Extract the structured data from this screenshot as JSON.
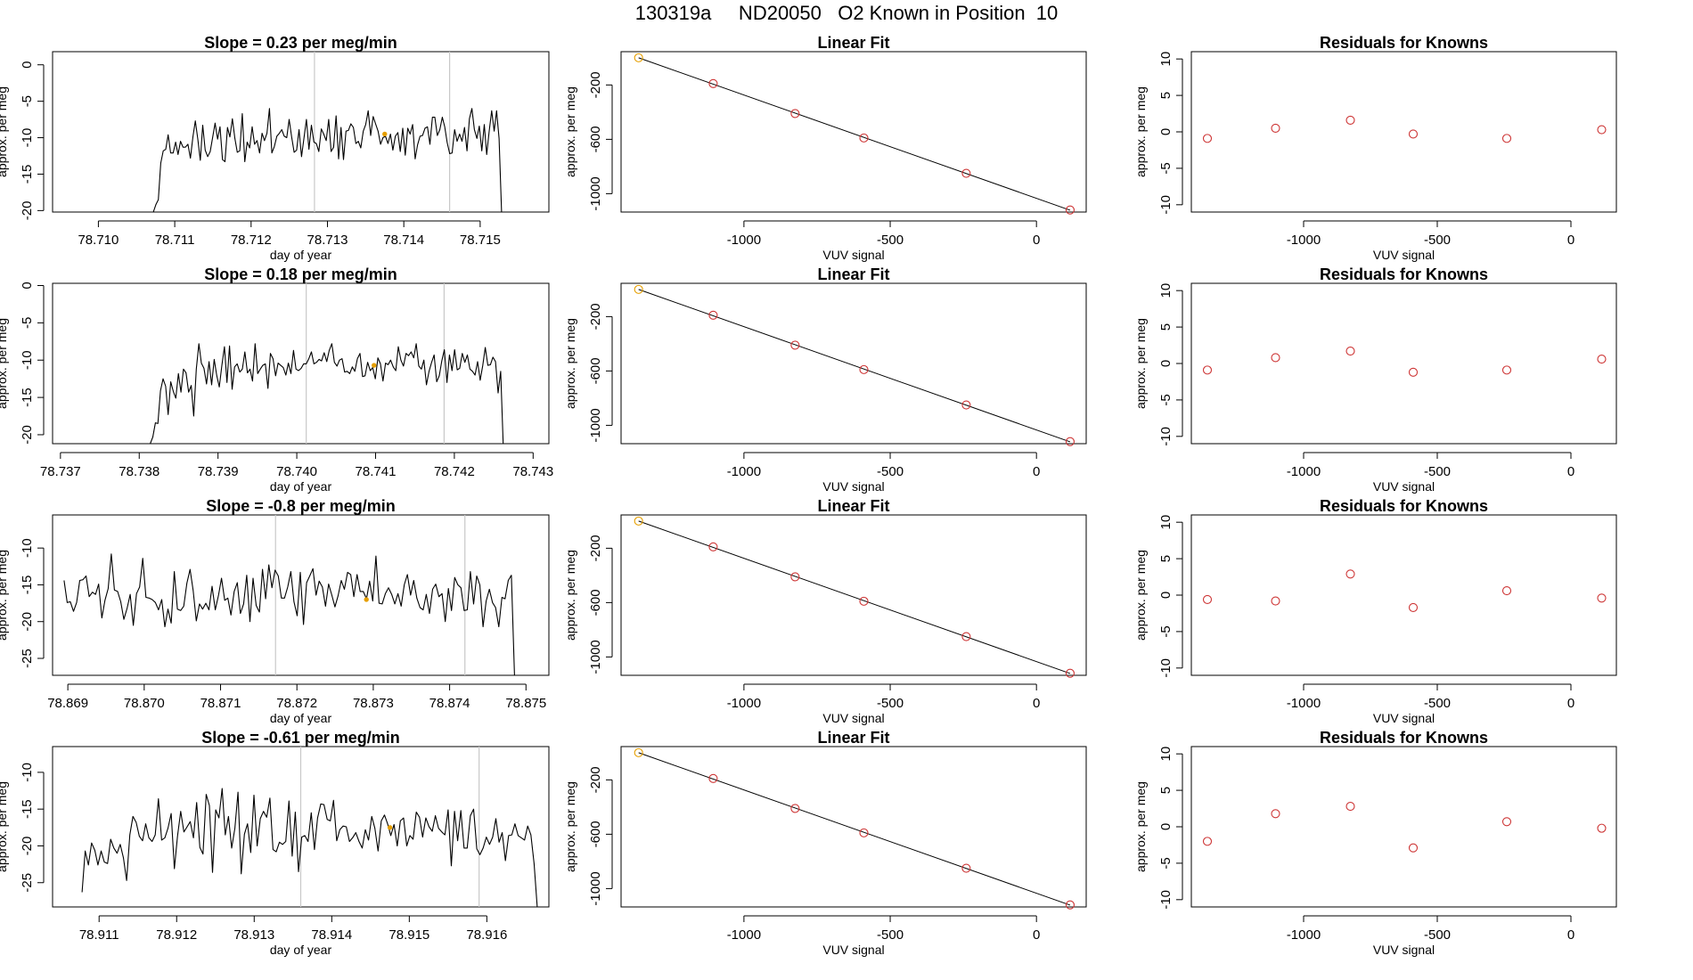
{
  "figure": {
    "title": "130319a     ND20050   O2 Known in Position  10"
  },
  "colors": {
    "trace": "#000000",
    "fit_line": "#000000",
    "guide_line": "#c8c8c8",
    "highlight": "#e69f00",
    "residual_point": "#cd3333",
    "axis": "#000000"
  },
  "chart_data": [
    {
      "type": "line",
      "row": 0,
      "panel": "trace",
      "title": "Slope =  0.23  per meg/min",
      "xlabel": "day of year",
      "ylabel": "approx. per meg",
      "xlim": [
        78.7094,
        78.7159
      ],
      "ylim": [
        -20.2,
        1.8
      ],
      "xticks": [
        78.71,
        78.711,
        78.712,
        78.713,
        78.714,
        78.715
      ],
      "xtick_labels": [
        "78.710",
        "78.711",
        "78.712",
        "78.713",
        "78.714",
        "78.715"
      ],
      "yticks": [
        0,
        -5,
        -10,
        -15,
        -20
      ],
      "ytick_labels": [
        "0",
        "-5",
        "-10",
        "-15",
        "-20"
      ],
      "guide_lines_x": [
        78.71283,
        78.7146
      ],
      "highlight_point": {
        "x": 78.71375,
        "y": -9.5
      },
      "segment": {
        "x_start": 78.71072,
        "x_end": 78.71528,
        "mean": -10.0,
        "amplitude": 2.8
      },
      "trace_y": [
        -20.2,
        -19.2,
        -18.5,
        -13.5,
        -11.8,
        -11.6,
        -9.6,
        -12.1,
        -12.1,
        -10.6,
        -12.3,
        -10.5,
        -11.3,
        -11.3,
        -10.9,
        -12.8,
        -9.9,
        -7.7,
        -10.2,
        -13.1,
        -8.3,
        -11.7,
        -12.6,
        -11.9,
        -10.0,
        -8.0,
        -10.2,
        -8.5,
        -13.0,
        -13.3,
        -8.6,
        -9.9,
        -7.4,
        -10.1,
        -12.0,
        -11.8,
        -6.7,
        -13.3,
        -10.6,
        -11.4,
        -8.5,
        -10.9,
        -10.4,
        -12.1,
        -9.4,
        -10.4,
        -9.4,
        -6.0,
        -12.1,
        -11.2,
        -9.8,
        -9.4,
        -8.9,
        -9.8,
        -10.0,
        -7.5,
        -9.9,
        -12.0,
        -11.7,
        -8.9,
        -12.6,
        -10.0,
        -7.5,
        -11.6,
        -8.3,
        -10.6,
        -10.8,
        -11.9,
        -8.8,
        -9.5,
        -10.4,
        -7.5,
        -11.9,
        -11.3,
        -7.0,
        -12.9,
        -8.6,
        -13.0,
        -9.1,
        -9.0,
        -8.1,
        -8.6,
        -10.8,
        -10.5,
        -11.4,
        -9.1,
        -8.2,
        -6.3,
        -9.7,
        -7.1,
        -8.1,
        -9.1,
        -10.9,
        -10.0,
        -9.8,
        -10.8,
        -9.5,
        -11.7,
        -9.8,
        -9.3,
        -11.9,
        -8.7,
        -12.4,
        -8.7,
        -9.5,
        -8.2,
        -12.9,
        -11.0,
        -9.8,
        -9.7,
        -8.7,
        -8.5,
        -10.9,
        -7.2,
        -7.2,
        -9.7,
        -8.9,
        -7.2,
        -8.5,
        -10.7,
        -12.2,
        -12.1,
        -8.9,
        -10.5,
        -9.5,
        -10.5,
        -8.6,
        -11.8,
        -7.4,
        -6.0,
        -8.9,
        -10.1,
        -8.4,
        -11.8,
        -8.2,
        -12.3,
        -9.1,
        -6.3,
        -9.1,
        -6.3,
        -10.1,
        -20.2
      ],
      "mean_y": -10.0
    },
    {
      "type": "scatter",
      "row": 0,
      "panel": "fit",
      "title": "Linear Fit",
      "xlabel": "VUV signal",
      "ylabel": "approx. per meg",
      "xlim": [
        -1420,
        170
      ],
      "ylim": [
        -1135,
        45
      ],
      "xticks": [
        -1000,
        -500,
        0
      ],
      "xtick_labels": [
        "-1000",
        "-500",
        "0"
      ],
      "yticks": [
        -200,
        -600,
        -1000
      ],
      "ytick_labels": [
        "-200",
        "-600",
        "-1000"
      ],
      "x": [
        -1360,
        -1105,
        -825,
        -590,
        -240,
        115
      ],
      "y": [
        0,
        -190,
        -410,
        -590,
        -850,
        -1120
      ]
    },
    {
      "type": "scatter",
      "row": 0,
      "panel": "residuals",
      "title": "Residuals for Knowns",
      "xlabel": "VUV signal",
      "ylabel": "approx. per meg",
      "xlim": [
        -1420,
        170
      ],
      "ylim": [
        -11,
        11
      ],
      "xticks": [
        -1000,
        -500,
        0
      ],
      "xtick_labels": [
        "-1000",
        "-500",
        "0"
      ],
      "yticks": [
        10,
        5,
        0,
        -5,
        -10
      ],
      "ytick_labels": [
        "10",
        "5",
        "0",
        "-5",
        "-10"
      ],
      "x": [
        -1360,
        -1105,
        -825,
        -590,
        -240,
        115
      ],
      "y": [
        -0.9,
        0.5,
        1.6,
        -0.3,
        -0.9,
        0.3
      ]
    },
    {
      "type": "line",
      "row": 1,
      "panel": "trace",
      "title": "Slope =  0.18  per meg/min",
      "xlabel": "day of year",
      "ylabel": "approx. per meg",
      "xlim": [
        78.7369,
        78.7432
      ],
      "ylim": [
        -21.2,
        0.3
      ],
      "xticks": [
        78.737,
        78.738,
        78.739,
        78.74,
        78.741,
        78.742,
        78.743
      ],
      "xtick_labels": [
        "78.737",
        "78.738",
        "78.739",
        "78.740",
        "78.741",
        "78.742",
        "78.743"
      ],
      "yticks": [
        0,
        -5,
        -10,
        -15,
        -20
      ],
      "ytick_labels": [
        "0",
        "-5",
        "-10",
        "-15",
        "-20"
      ],
      "guide_lines_x": [
        78.74012,
        78.74187
      ],
      "highlight_point": {
        "x": 78.74098,
        "y": -10.7
      },
      "segment": {
        "x_start": 78.73814,
        "x_end": 78.74262,
        "mean": -10.5,
        "amplitude": 3.0
      },
      "trace_y": [
        -21.2,
        -20.3,
        -18.4,
        -18.5,
        -14.1,
        -12.5,
        -13.5,
        -17.3,
        -12.9,
        -14.2,
        -15.1,
        -11.8,
        -14.3,
        -11.2,
        -11.7,
        -14.3,
        -13.4,
        -17.5,
        -11.2,
        -7.8,
        -10.4,
        -11.1,
        -13.2,
        -10.2,
        -13.3,
        -9.9,
        -12.1,
        -13.6,
        -10.7,
        -8.2,
        -13.0,
        -8.1,
        -13.9,
        -10.9,
        -10.5,
        -11.6,
        -11.2,
        -8.9,
        -11.7,
        -11.2,
        -12.8,
        -7.8,
        -11.8,
        -11.2,
        -10.7,
        -10.5,
        -13.8,
        -9.1,
        -9.8,
        -12.1,
        -10.4,
        -10.7,
        -11.0,
        -12.0,
        -10.4,
        -11.8,
        -8.7,
        -11.2,
        -11.4,
        -11.1,
        -10.5,
        -10.5,
        -9.8,
        -8.9,
        -10.5,
        -10.3,
        -9.9,
        -10.1,
        -9.0,
        -10.2,
        -8.7,
        -7.8,
        -10.3,
        -10.8,
        -10.0,
        -9.8,
        -11.6,
        -11.5,
        -11.8,
        -10.9,
        -11.5,
        -9.8,
        -9.1,
        -12.2,
        -12.1,
        -10.3,
        -11.4,
        -11.0,
        -12.5,
        -9.7,
        -10.5,
        -12.8,
        -10.4,
        -10.6,
        -10.0,
        -10.9,
        -11.4,
        -8.2,
        -10.0,
        -10.8,
        -9.1,
        -9.4,
        -8.9,
        -9.7,
        -7.8,
        -10.8,
        -11.2,
        -10.0,
        -13.3,
        -11.5,
        -10.3,
        -9.3,
        -12.9,
        -12.1,
        -10.1,
        -8.6,
        -13.0,
        -9.3,
        -11.4,
        -8.6,
        -11.3,
        -11.1,
        -9.1,
        -10.3,
        -9.3,
        -11.2,
        -11.5,
        -12.0,
        -10.2,
        -12.7,
        -10.7,
        -8.3,
        -10.7,
        -10.6,
        -9.6,
        -10.2,
        -14.4,
        -11.5,
        -21.2
      ],
      "mean_y": -10.5
    },
    {
      "type": "scatter",
      "row": 1,
      "panel": "fit",
      "title": "Linear Fit",
      "xlabel": "VUV signal",
      "ylabel": "approx. per meg",
      "xlim": [
        -1420,
        170
      ],
      "ylim": [
        -1135,
        45
      ],
      "xticks": [
        -1000,
        -500,
        0
      ],
      "xtick_labels": [
        "-1000",
        "-500",
        "0"
      ],
      "yticks": [
        -200,
        -600,
        -1000
      ],
      "ytick_labels": [
        "-200",
        "-600",
        "-1000"
      ],
      "x": [
        -1360,
        -1105,
        -825,
        -590,
        -240,
        115
      ],
      "y": [
        0,
        -190,
        -410,
        -590,
        -850,
        -1120
      ]
    },
    {
      "type": "scatter",
      "row": 1,
      "panel": "residuals",
      "title": "Residuals for Knowns",
      "xlabel": "VUV signal",
      "ylabel": "approx. per meg",
      "xlim": [
        -1420,
        170
      ],
      "ylim": [
        -11,
        11
      ],
      "xticks": [
        -1000,
        -500,
        0
      ],
      "xtick_labels": [
        "-1000",
        "-500",
        "0"
      ],
      "yticks": [
        10,
        5,
        0,
        -5,
        -10
      ],
      "ytick_labels": [
        "10",
        "5",
        "0",
        "-5",
        "-10"
      ],
      "x": [
        -1360,
        -1105,
        -825,
        -590,
        -240,
        115
      ],
      "y": [
        -0.9,
        0.8,
        1.7,
        -1.2,
        -0.9,
        0.6
      ]
    },
    {
      "type": "line",
      "row": 2,
      "panel": "trace",
      "title": "Slope =  -0.8  per meg/min",
      "xlabel": "day of year",
      "ylabel": "approx. per meg",
      "xlim": [
        78.8688,
        78.8753
      ],
      "ylim": [
        -27.3,
        -5.5
      ],
      "xticks": [
        78.869,
        78.87,
        78.871,
        78.872,
        78.873,
        78.874,
        78.875
      ],
      "xtick_labels": [
        "78.869",
        "78.870",
        "78.871",
        "78.872",
        "78.873",
        "78.874",
        "78.875"
      ],
      "yticks": [
        -10,
        -15,
        -20,
        -25
      ],
      "ytick_labels": [
        "-10",
        "-15",
        "-20",
        "-25"
      ],
      "guide_lines_x": [
        78.87172,
        78.8742
      ],
      "highlight_point": {
        "x": 78.87291,
        "y": -17.0
      },
      "segment": {
        "x_start": 78.86895,
        "x_end": 78.87485,
        "mean": -16.0,
        "amplitude": 3.0
      },
      "trace_y": [
        -14.4,
        -17.4,
        -17.3,
        -18.6,
        -17.4,
        -14.4,
        -14.3,
        -13.8,
        -16.6,
        -16.0,
        -16.3,
        -14.9,
        -19.5,
        -17.1,
        -15.5,
        -10.8,
        -15.7,
        -15.9,
        -17.3,
        -19.7,
        -18.2,
        -16.3,
        -20.5,
        -16.2,
        -15.3,
        -11.4,
        -16.7,
        -16.8,
        -17.0,
        -17.4,
        -18.4,
        -17.0,
        -20.7,
        -18.3,
        -20.2,
        -13.2,
        -18.3,
        -18.5,
        -17.9,
        -14.8,
        -12.9,
        -15.8,
        -19.9,
        -17.6,
        -18.3,
        -17.5,
        -18.4,
        -15.2,
        -18.4,
        -16.5,
        -14.1,
        -17.1,
        -16.8,
        -19.1,
        -15.9,
        -14.7,
        -18.9,
        -17.6,
        -13.7,
        -20.0,
        -14.1,
        -17.8,
        -18.7,
        -12.9,
        -16.9,
        -12.3,
        -15.4,
        -13.0,
        -13.8,
        -16.8,
        -16.8,
        -15.3,
        -13.2,
        -17.3,
        -19.2,
        -13.3,
        -20.4,
        -14.7,
        -13.8,
        -12.8,
        -16.4,
        -14.5,
        -15.3,
        -17.9,
        -14.9,
        -16.4,
        -18.0,
        -16.5,
        -14.4,
        -15.6,
        -13.3,
        -13.6,
        -16.6,
        -13.6,
        -15.9,
        -15.9,
        -16.9,
        -14.5,
        -17.2,
        -11.1,
        -17.5,
        -17.6,
        -16.2,
        -15.4,
        -16.3,
        -17.6,
        -16.2,
        -17.9,
        -15.0,
        -13.6,
        -16.4,
        -14.4,
        -16.8,
        -18.1,
        -18.4,
        -16.3,
        -18.9,
        -15.6,
        -14.9,
        -16.6,
        -16.2,
        -20.0,
        -15.5,
        -18.5,
        -14.0,
        -15.0,
        -15.4,
        -18.5,
        -18.4,
        -13.2,
        -17.6,
        -13.8,
        -15.0,
        -20.7,
        -17.2,
        -15.6,
        -17.4,
        -18.1,
        -20.7,
        -16.7,
        -16.9,
        -14.4,
        -13.7,
        -27.3
      ],
      "mean_y": -16.0
    },
    {
      "type": "scatter",
      "row": 2,
      "panel": "fit",
      "title": "Linear Fit",
      "xlabel": "VUV signal",
      "ylabel": "approx. per meg",
      "xlim": [
        -1420,
        170
      ],
      "ylim": [
        -1135,
        45
      ],
      "xticks": [
        -1000,
        -500,
        0
      ],
      "xtick_labels": [
        "-1000",
        "-500",
        "0"
      ],
      "yticks": [
        -200,
        -600,
        -1000
      ],
      "ytick_labels": [
        "-200",
        "-600",
        "-1000"
      ],
      "x": [
        -1360,
        -1105,
        -825,
        -590,
        -240,
        115
      ],
      "y": [
        0,
        -190,
        -410,
        -590,
        -850,
        -1120
      ]
    },
    {
      "type": "scatter",
      "row": 2,
      "panel": "residuals",
      "title": "Residuals for Knowns",
      "xlabel": "VUV signal",
      "ylabel": "approx. per meg",
      "xlim": [
        -1420,
        170
      ],
      "ylim": [
        -11,
        11
      ],
      "xticks": [
        -1000,
        -500,
        0
      ],
      "xtick_labels": [
        "-1000",
        "-500",
        "0"
      ],
      "yticks": [
        10,
        5,
        0,
        -5,
        -10
      ],
      "ytick_labels": [
        "10",
        "5",
        "0",
        "-5",
        "-10"
      ],
      "x": [
        -1360,
        -1105,
        -825,
        -590,
        -240,
        115
      ],
      "y": [
        -0.6,
        -0.8,
        2.9,
        -1.7,
        0.6,
        -0.4
      ]
    },
    {
      "type": "line",
      "row": 3,
      "panel": "trace",
      "title": "Slope =  -0.61  per meg/min",
      "xlabel": "day of year",
      "ylabel": "approx. per meg",
      "xlim": [
        78.9104,
        78.9168
      ],
      "ylim": [
        -28.3,
        -6.5
      ],
      "xticks": [
        78.911,
        78.912,
        78.913,
        78.914,
        78.915,
        78.916
      ],
      "xtick_labels": [
        "78.911",
        "78.912",
        "78.913",
        "78.914",
        "78.915",
        "78.916"
      ],
      "yticks": [
        -10,
        -15,
        -20,
        -25
      ],
      "ytick_labels": [
        "-10",
        "-15",
        "-20",
        "-25"
      ],
      "guide_lines_x": [
        78.9136,
        78.9159
      ],
      "highlight_point": {
        "x": 78.91475,
        "y": -17.5
      },
      "segment": {
        "x_start": 78.91078,
        "x_end": 78.91665,
        "mean": -17.5,
        "amplitude": 3.0
      },
      "trace_y": [
        -26.3,
        -20.7,
        -22.6,
        -19.6,
        -20.6,
        -22.6,
        -20.7,
        -22.2,
        -22.4,
        -19.1,
        -20.3,
        -21.0,
        -19.8,
        -21.6,
        -24.7,
        -18.5,
        -16.0,
        -16.8,
        -18.7,
        -19.3,
        -17.0,
        -18.9,
        -19.4,
        -18.5,
        -13.6,
        -19.2,
        -18.9,
        -17.6,
        -15.6,
        -23.1,
        -18.7,
        -15.3,
        -18.1,
        -17.4,
        -16.7,
        -18.9,
        -14.1,
        -20.2,
        -21.1,
        -13.0,
        -14.5,
        -23.6,
        -15.1,
        -16.2,
        -12.2,
        -18.5,
        -16.0,
        -20.3,
        -17.6,
        -12.7,
        -23.8,
        -18.4,
        -17.0,
        -20.9,
        -13.1,
        -20.0,
        -16.3,
        -15.3,
        -16.1,
        -13.5,
        -20.5,
        -20.8,
        -19.5,
        -19.8,
        -19.4,
        -13.9,
        -21.4,
        -15.4,
        -23.5,
        -18.8,
        -18.6,
        -19.4,
        -15.5,
        -20.5,
        -16.2,
        -14.3,
        -14.4,
        -16.4,
        -16.6,
        -13.8,
        -19.3,
        -17.8,
        -17.3,
        -17.4,
        -19.4,
        -18.9,
        -18.2,
        -19.4,
        -20.3,
        -17.8,
        -19.2,
        -16.0,
        -17.6,
        -20.7,
        -16.6,
        -15.8,
        -17.0,
        -18.6,
        -17.1,
        -20.0,
        -16.6,
        -16.2,
        -20.0,
        -18.6,
        -19.1,
        -15.4,
        -16.1,
        -18.8,
        -16.2,
        -17.4,
        -18.0,
        -15.9,
        -17.6,
        -18.1,
        -18.5,
        -15.1,
        -22.7,
        -15.3,
        -19.3,
        -15.2,
        -20.3,
        -20.3,
        -15.9,
        -15.0,
        -20.4,
        -21.2,
        -20.3,
        -18.8,
        -19.8,
        -18.8,
        -16.3,
        -19.5,
        -18.2,
        -22.0,
        -18.6,
        -18.5,
        -17.0,
        -18.6,
        -18.9,
        -19.2,
        -17.3,
        -18.5,
        -22.4,
        -28.3
      ],
      "mean_y": -17.5
    },
    {
      "type": "scatter",
      "row": 3,
      "panel": "fit",
      "title": "Linear Fit",
      "xlabel": "VUV signal",
      "ylabel": "approx. per meg",
      "xlim": [
        -1420,
        170
      ],
      "ylim": [
        -1135,
        45
      ],
      "xticks": [
        -1000,
        -500,
        0
      ],
      "xtick_labels": [
        "-1000",
        "-500",
        "0"
      ],
      "yticks": [
        -200,
        -600,
        -1000
      ],
      "ytick_labels": [
        "-200",
        "-600",
        "-1000"
      ],
      "x": [
        -1360,
        -1105,
        -825,
        -590,
        -240,
        115
      ],
      "y": [
        0,
        -190,
        -410,
        -590,
        -850,
        -1120
      ]
    },
    {
      "type": "scatter",
      "row": 3,
      "panel": "residuals",
      "title": "Residuals for Knowns",
      "xlabel": "VUV signal",
      "ylabel": "approx. per meg",
      "xlim": [
        -1420,
        170
      ],
      "ylim": [
        -11,
        11
      ],
      "xticks": [
        -1000,
        -500,
        0
      ],
      "xtick_labels": [
        "-1000",
        "-500",
        "0"
      ],
      "yticks": [
        10,
        5,
        0,
        -5,
        -10
      ],
      "ytick_labels": [
        "10",
        "5",
        "0",
        "-5",
        "-10"
      ],
      "x": [
        -1360,
        -1105,
        -825,
        -590,
        -240,
        115
      ],
      "y": [
        -2.0,
        1.8,
        2.8,
        -2.9,
        0.7,
        -0.2
      ]
    }
  ]
}
